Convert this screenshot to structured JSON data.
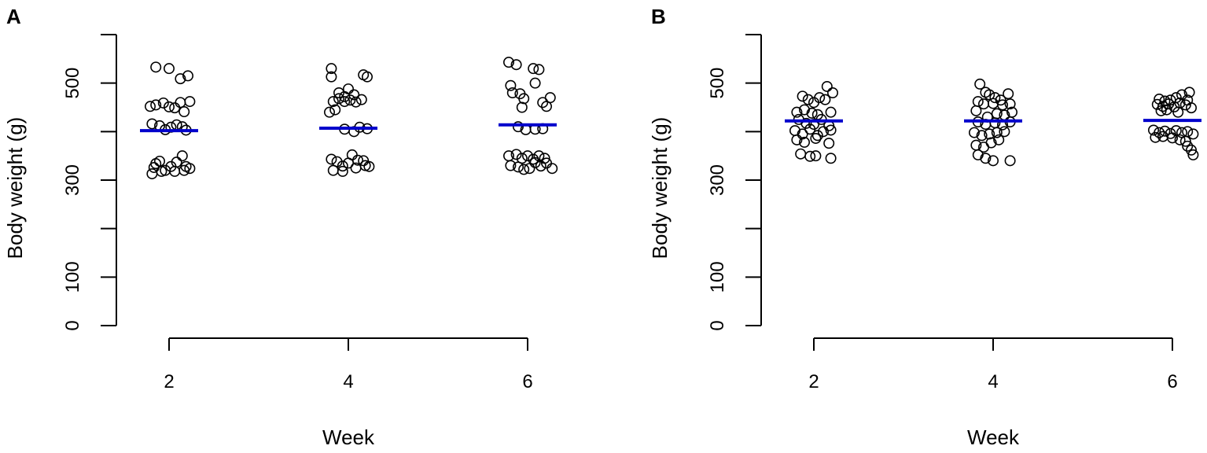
{
  "chart_data": [
    {
      "panel_label": "A",
      "type": "scatter",
      "xlabel": "Week",
      "ylabel": "Body weight (g)",
      "x_ticks": [
        "2",
        "4",
        "6"
      ],
      "y_ticks": [
        "0",
        "100",
        "300",
        "500"
      ],
      "ylim": [
        0,
        600
      ],
      "mean_color": "#0000cc",
      "groups": [
        {
          "week": "2",
          "mean": 402,
          "points": [
            [
              -0.07,
              533
            ],
            [
              0.0,
              530
            ],
            [
              0.06,
              509
            ],
            [
              0.1,
              515
            ],
            [
              -0.1,
              452
            ],
            [
              -0.07,
              455
            ],
            [
              -0.03,
              459
            ],
            [
              0.0,
              451
            ],
            [
              0.03,
              449
            ],
            [
              0.06,
              460
            ],
            [
              0.08,
              441
            ],
            [
              0.11,
              462
            ],
            [
              -0.09,
              416
            ],
            [
              -0.05,
              412
            ],
            [
              -0.02,
              404
            ],
            [
              0.01,
              409
            ],
            [
              0.04,
              414
            ],
            [
              0.07,
              410
            ],
            [
              0.09,
              403
            ],
            [
              -0.07,
              334
            ],
            [
              -0.08,
              326
            ],
            [
              -0.05,
              339
            ],
            [
              -0.02,
              320
            ],
            [
              0.01,
              328
            ],
            [
              0.04,
              337
            ],
            [
              0.07,
              350
            ],
            [
              0.09,
              328
            ],
            [
              0.11,
              324
            ],
            [
              -0.09,
              313
            ],
            [
              -0.04,
              318
            ],
            [
              0.03,
              318
            ],
            [
              0.08,
              320
            ]
          ]
        },
        {
          "week": "4",
          "mean": 407,
          "points": [
            [
              -0.09,
              530
            ],
            [
              -0.09,
              513
            ],
            [
              0.08,
              517
            ],
            [
              0.1,
              513
            ],
            [
              -0.05,
              480
            ],
            [
              -0.02,
              472
            ],
            [
              0.0,
              488
            ],
            [
              0.03,
              476
            ],
            [
              -0.08,
              462
            ],
            [
              -0.05,
              468
            ],
            [
              -0.02,
              462
            ],
            [
              0.01,
              465
            ],
            [
              0.04,
              461
            ],
            [
              0.07,
              466
            ],
            [
              -0.1,
              440
            ],
            [
              -0.07,
              445
            ],
            [
              -0.02,
              405
            ],
            [
              0.03,
              400
            ],
            [
              0.06,
              409
            ],
            [
              0.1,
              406
            ],
            [
              -0.09,
              343
            ],
            [
              -0.06,
              338
            ],
            [
              -0.03,
              329
            ],
            [
              0.0,
              335
            ],
            [
              0.02,
              352
            ],
            [
              0.05,
              341
            ],
            [
              0.08,
              340
            ],
            [
              0.11,
              328
            ],
            [
              -0.08,
              320
            ],
            [
              -0.03,
              318
            ],
            [
              0.04,
              325
            ],
            [
              0.09,
              330
            ]
          ]
        },
        {
          "week": "6",
          "mean": 414,
          "points": [
            [
              -0.1,
              543
            ],
            [
              -0.06,
              538
            ],
            [
              0.03,
              530
            ],
            [
              0.06,
              528
            ],
            [
              -0.09,
              495
            ],
            [
              -0.08,
              480
            ],
            [
              -0.04,
              478
            ],
            [
              -0.02,
              468
            ],
            [
              0.04,
              500
            ],
            [
              0.08,
              460
            ],
            [
              0.1,
              452
            ],
            [
              0.12,
              470
            ],
            [
              -0.03,
              450
            ],
            [
              -0.05,
              410
            ],
            [
              -0.01,
              404
            ],
            [
              0.04,
              405
            ],
            [
              0.08,
              406
            ],
            [
              -0.1,
              350
            ],
            [
              -0.06,
              353
            ],
            [
              -0.03,
              345
            ],
            [
              0.0,
              350
            ],
            [
              0.03,
              343
            ],
            [
              0.06,
              350
            ],
            [
              0.09,
              345
            ],
            [
              -0.09,
              330
            ],
            [
              -0.05,
              327
            ],
            [
              -0.02,
              322
            ],
            [
              0.01,
              324
            ],
            [
              0.04,
              336
            ],
            [
              0.07,
              329
            ],
            [
              0.1,
              335
            ],
            [
              0.13,
              324
            ]
          ]
        }
      ]
    },
    {
      "panel_label": "B",
      "type": "scatter",
      "xlabel": "Week",
      "ylabel": "Body weight (g)",
      "x_ticks": [
        "2",
        "4",
        "6"
      ],
      "y_ticks": [
        "0",
        "100",
        "300",
        "500"
      ],
      "ylim": [
        0,
        600
      ],
      "mean_color": "#0000cc",
      "groups": [
        {
          "week": "2",
          "mean": 422,
          "points": [
            [
              0.07,
              493
            ],
            [
              0.1,
              480
            ],
            [
              -0.06,
              473
            ],
            [
              -0.03,
              466
            ],
            [
              0.0,
              460
            ],
            [
              0.03,
              470
            ],
            [
              0.06,
              466
            ],
            [
              -0.09,
              440
            ],
            [
              -0.05,
              445
            ],
            [
              -0.01,
              438
            ],
            [
              0.02,
              435
            ],
            [
              0.09,
              440
            ],
            [
              -0.08,
              425
            ],
            [
              -0.04,
              417
            ],
            [
              0.0,
              415
            ],
            [
              0.04,
              425
            ],
            [
              0.08,
              412
            ],
            [
              -0.1,
              402
            ],
            [
              -0.06,
              395
            ],
            [
              -0.02,
              405
            ],
            [
              0.02,
              392
            ],
            [
              0.05,
              400
            ],
            [
              0.09,
              403
            ],
            [
              -0.09,
              383
            ],
            [
              -0.05,
              378
            ],
            [
              0.01,
              386
            ],
            [
              0.08,
              376
            ],
            [
              -0.07,
              354
            ],
            [
              -0.02,
              349
            ],
            [
              0.01,
              350
            ],
            [
              0.09,
              345
            ]
          ]
        },
        {
          "week": "4",
          "mean": 422,
          "points": [
            [
              -0.07,
              498
            ],
            [
              -0.04,
              481
            ],
            [
              -0.02,
              476
            ],
            [
              0.01,
              470
            ],
            [
              0.04,
              465
            ],
            [
              0.08,
              478
            ],
            [
              -0.08,
              462
            ],
            [
              -0.05,
              457
            ],
            [
              0.0,
              458
            ],
            [
              0.05,
              455
            ],
            [
              0.09,
              457
            ],
            [
              -0.09,
              443
            ],
            [
              -0.03,
              430
            ],
            [
              0.02,
              437
            ],
            [
              0.06,
              434
            ],
            [
              0.1,
              440
            ],
            [
              -0.08,
              420
            ],
            [
              -0.04,
              415
            ],
            [
              0.01,
              418
            ],
            [
              0.05,
              414
            ],
            [
              0.09,
              420
            ],
            [
              -0.1,
              398
            ],
            [
              -0.06,
              392
            ],
            [
              -0.02,
              395
            ],
            [
              0.02,
              398
            ],
            [
              0.06,
              400
            ],
            [
              -0.09,
              372
            ],
            [
              -0.05,
              368
            ],
            [
              -0.01,
              377
            ],
            [
              0.03,
              383
            ],
            [
              -0.08,
              352
            ],
            [
              -0.04,
              345
            ],
            [
              0.0,
              340
            ],
            [
              0.09,
              340
            ]
          ]
        },
        {
          "week": "6",
          "mean": 423,
          "points": [
            [
              0.05,
              476
            ],
            [
              0.09,
              481
            ],
            [
              -0.07,
              467
            ],
            [
              -0.04,
              463
            ],
            [
              -0.01,
              465
            ],
            [
              0.02,
              470
            ],
            [
              0.08,
              465
            ],
            [
              -0.08,
              456
            ],
            [
              -0.05,
              452
            ],
            [
              -0.02,
              457
            ],
            [
              0.01,
              451
            ],
            [
              0.04,
              459
            ],
            [
              0.07,
              455
            ],
            [
              0.1,
              449
            ],
            [
              -0.06,
              443
            ],
            [
              -0.03,
              445
            ],
            [
              0.03,
              440
            ],
            [
              -0.1,
              403
            ],
            [
              -0.07,
              398
            ],
            [
              -0.04,
              401
            ],
            [
              -0.01,
              396
            ],
            [
              0.02,
              402
            ],
            [
              0.05,
              398
            ],
            [
              0.08,
              400
            ],
            [
              0.11,
              395
            ],
            [
              -0.09,
              388
            ],
            [
              -0.05,
              390
            ],
            [
              0.0,
              387
            ],
            [
              0.04,
              383
            ],
            [
              0.07,
              380
            ],
            [
              0.08,
              370
            ],
            [
              0.1,
              362
            ],
            [
              0.11,
              352
            ]
          ]
        }
      ]
    }
  ]
}
